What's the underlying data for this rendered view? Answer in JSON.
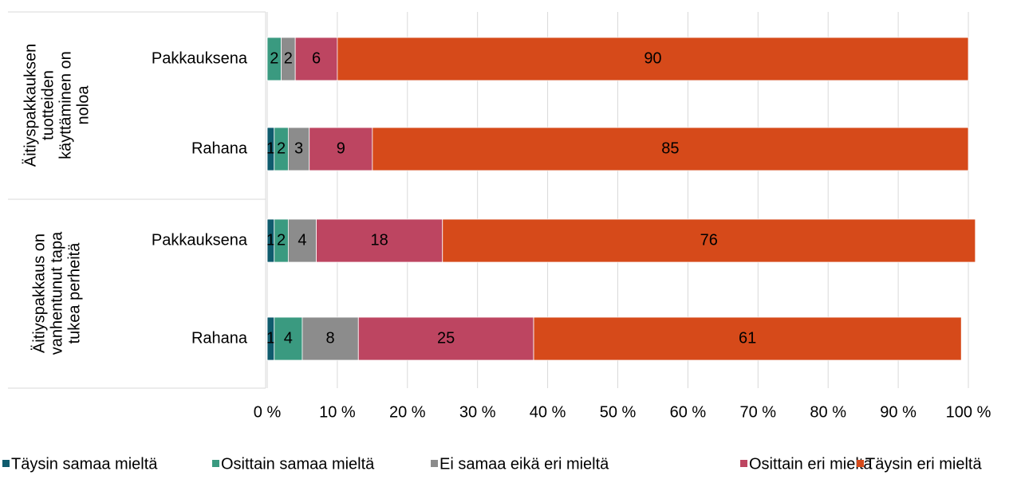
{
  "chart_data": {
    "type": "stacked_barh",
    "groups": [
      {
        "label_lines": [
          "Äitiyspakkauksen",
          "tuotteiden",
          "käyttäminen on",
          "noloa"
        ]
      },
      {
        "label_lines": [
          "Äitiyspakkaus on",
          "vanhentunut tapa",
          "tukea perheitä"
        ]
      }
    ],
    "categories": [
      "Pakkauksena",
      "Rahana",
      "Pakkauksena",
      "Rahana"
    ],
    "series": [
      {
        "name": "Täysin samaa mieltä",
        "color": "#0f5b6d",
        "label_color": "#ffffff",
        "values": [
          0,
          1,
          1,
          1
        ]
      },
      {
        "name": "Osittain samaa mieltä",
        "color": "#3a9a80",
        "label_color": "#000000",
        "values": [
          2,
          2,
          2,
          4
        ]
      },
      {
        "name": "Ei samaa eikä eri mieltä",
        "color": "#8c8c8c",
        "label_color": "#000000",
        "values": [
          2,
          3,
          4,
          8
        ]
      },
      {
        "name": "Osittain eri mieltä",
        "color": "#bd4561",
        "label_color": "#ffffff",
        "values": [
          6,
          9,
          18,
          25
        ]
      },
      {
        "name": "Täysin eri mieltä",
        "color": "#d64a1a",
        "label_color": "#000000",
        "values": [
          90,
          85,
          76,
          61
        ]
      }
    ],
    "xlim": [
      0,
      100
    ],
    "xticks": [
      {
        "value": 0,
        "label": "0 %"
      },
      {
        "value": 10,
        "label": "10 %"
      },
      {
        "value": 20,
        "label": "20 %"
      },
      {
        "value": 30,
        "label": "30 %"
      },
      {
        "value": 40,
        "label": "40 %"
      },
      {
        "value": 50,
        "label": "50 %"
      },
      {
        "value": 60,
        "label": "60 %"
      },
      {
        "value": 70,
        "label": "70 %"
      },
      {
        "value": 80,
        "label": "80 %"
      },
      {
        "value": 90,
        "label": "90 %"
      },
      {
        "value": 100,
        "label": "100 %"
      }
    ],
    "grid": true,
    "legend": "bottom"
  }
}
